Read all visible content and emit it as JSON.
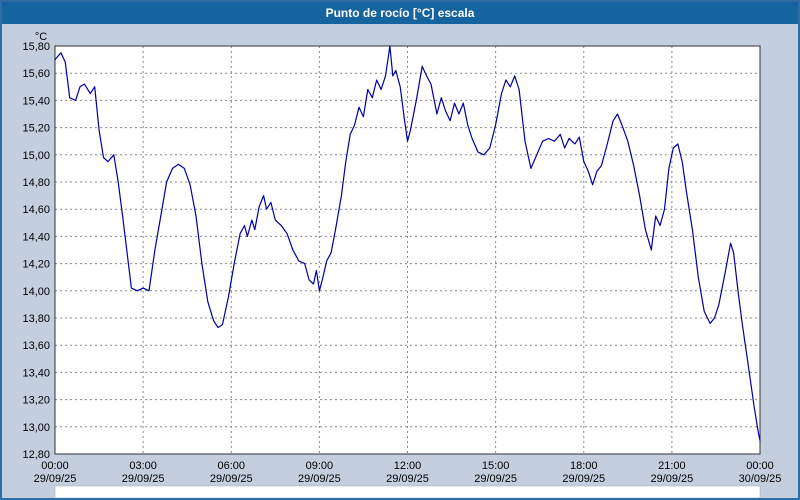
{
  "window": {
    "title": "Punto de rocío [°C] escala"
  },
  "colors": {
    "frame_border": "#2e6da4",
    "title_bar_bg": "#15639f",
    "title_text": "#ffffff",
    "panel_bg": "#c3cfdf",
    "plot_bg": "#ffffff",
    "grid": "#888888",
    "plot_border": "#333333",
    "line": "#0000a0",
    "tick_text": "#000000"
  },
  "chart_data": {
    "type": "line",
    "title": "Punto de rocío [°C] escala",
    "ylabel": "°C",
    "y_unit_label": "°C",
    "ylim": [
      12.8,
      15.8
    ],
    "y_tick_step": 0.2,
    "decimal_comma": true,
    "x_hours_range": [
      0,
      24
    ],
    "x_tick_step_hours": 3,
    "x_tick_times": [
      "00:00",
      "03:00",
      "06:00",
      "09:00",
      "12:00",
      "15:00",
      "18:00",
      "21:00",
      "00:00"
    ],
    "x_tick_dates": [
      "29/09/25",
      "29/09/25",
      "29/09/25",
      "29/09/25",
      "29/09/25",
      "29/09/25",
      "29/09/25",
      "29/09/25",
      "30/09/25"
    ],
    "grid": true,
    "legend_position": "none",
    "series": [
      {
        "name": "Punto de rocío",
        "points": [
          [
            0,
            15.7
          ],
          [
            0.2,
            15.75
          ],
          [
            0.35,
            15.68
          ],
          [
            0.5,
            15.42
          ],
          [
            0.7,
            15.4
          ],
          [
            0.85,
            15.5
          ],
          [
            1.0,
            15.52
          ],
          [
            1.2,
            15.45
          ],
          [
            1.35,
            15.5
          ],
          [
            1.5,
            15.18
          ],
          [
            1.65,
            14.98
          ],
          [
            1.8,
            14.95
          ],
          [
            2.0,
            15.0
          ],
          [
            2.15,
            14.8
          ],
          [
            2.3,
            14.55
          ],
          [
            2.5,
            14.2
          ],
          [
            2.6,
            14.02
          ],
          [
            2.8,
            14.0
          ],
          [
            3.0,
            14.02
          ],
          [
            3.2,
            14.0
          ],
          [
            3.4,
            14.3
          ],
          [
            3.6,
            14.55
          ],
          [
            3.8,
            14.8
          ],
          [
            4.0,
            14.9
          ],
          [
            4.2,
            14.93
          ],
          [
            4.4,
            14.9
          ],
          [
            4.6,
            14.78
          ],
          [
            4.8,
            14.55
          ],
          [
            5.0,
            14.2
          ],
          [
            5.2,
            13.92
          ],
          [
            5.4,
            13.78
          ],
          [
            5.55,
            13.73
          ],
          [
            5.7,
            13.75
          ],
          [
            5.9,
            13.95
          ],
          [
            6.1,
            14.2
          ],
          [
            6.3,
            14.42
          ],
          [
            6.45,
            14.48
          ],
          [
            6.55,
            14.4
          ],
          [
            6.7,
            14.52
          ],
          [
            6.8,
            14.45
          ],
          [
            6.95,
            14.62
          ],
          [
            7.1,
            14.7
          ],
          [
            7.2,
            14.6
          ],
          [
            7.35,
            14.65
          ],
          [
            7.5,
            14.52
          ],
          [
            7.7,
            14.48
          ],
          [
            7.9,
            14.42
          ],
          [
            8.1,
            14.3
          ],
          [
            8.3,
            14.22
          ],
          [
            8.5,
            14.2
          ],
          [
            8.65,
            14.08
          ],
          [
            8.8,
            14.05
          ],
          [
            8.9,
            14.15
          ],
          [
            9.0,
            14.0
          ],
          [
            9.1,
            14.08
          ],
          [
            9.25,
            14.22
          ],
          [
            9.4,
            14.28
          ],
          [
            9.55,
            14.45
          ],
          [
            9.75,
            14.7
          ],
          [
            9.9,
            14.95
          ],
          [
            10.05,
            15.15
          ],
          [
            10.2,
            15.22
          ],
          [
            10.35,
            15.35
          ],
          [
            10.5,
            15.28
          ],
          [
            10.65,
            15.48
          ],
          [
            10.8,
            15.42
          ],
          [
            10.95,
            15.55
          ],
          [
            11.1,
            15.48
          ],
          [
            11.25,
            15.58
          ],
          [
            11.4,
            15.8
          ],
          [
            11.5,
            15.58
          ],
          [
            11.6,
            15.62
          ],
          [
            11.75,
            15.5
          ],
          [
            11.9,
            15.25
          ],
          [
            12.0,
            15.1
          ],
          [
            12.1,
            15.18
          ],
          [
            12.3,
            15.4
          ],
          [
            12.5,
            15.65
          ],
          [
            12.65,
            15.58
          ],
          [
            12.8,
            15.52
          ],
          [
            13.0,
            15.3
          ],
          [
            13.15,
            15.42
          ],
          [
            13.3,
            15.32
          ],
          [
            13.45,
            15.25
          ],
          [
            13.6,
            15.38
          ],
          [
            13.75,
            15.3
          ],
          [
            13.9,
            15.38
          ],
          [
            14.05,
            15.22
          ],
          [
            14.2,
            15.12
          ],
          [
            14.4,
            15.02
          ],
          [
            14.6,
            15.0
          ],
          [
            14.8,
            15.05
          ],
          [
            15.0,
            15.22
          ],
          [
            15.2,
            15.45
          ],
          [
            15.35,
            15.55
          ],
          [
            15.5,
            15.5
          ],
          [
            15.65,
            15.58
          ],
          [
            15.8,
            15.48
          ],
          [
            16.0,
            15.1
          ],
          [
            16.2,
            14.9
          ],
          [
            16.4,
            15.0
          ],
          [
            16.6,
            15.1
          ],
          [
            16.8,
            15.12
          ],
          [
            17.0,
            15.1
          ],
          [
            17.2,
            15.15
          ],
          [
            17.35,
            15.05
          ],
          [
            17.5,
            15.12
          ],
          [
            17.7,
            15.08
          ],
          [
            17.85,
            15.13
          ],
          [
            18.0,
            14.95
          ],
          [
            18.15,
            14.88
          ],
          [
            18.3,
            14.78
          ],
          [
            18.45,
            14.88
          ],
          [
            18.6,
            14.92
          ],
          [
            18.8,
            15.08
          ],
          [
            19.0,
            15.25
          ],
          [
            19.15,
            15.3
          ],
          [
            19.3,
            15.22
          ],
          [
            19.5,
            15.1
          ],
          [
            19.7,
            14.92
          ],
          [
            19.9,
            14.7
          ],
          [
            20.1,
            14.45
          ],
          [
            20.3,
            14.3
          ],
          [
            20.45,
            14.55
          ],
          [
            20.6,
            14.48
          ],
          [
            20.75,
            14.6
          ],
          [
            20.9,
            14.9
          ],
          [
            21.05,
            15.05
          ],
          [
            21.2,
            15.08
          ],
          [
            21.35,
            14.95
          ],
          [
            21.5,
            14.72
          ],
          [
            21.7,
            14.45
          ],
          [
            21.9,
            14.1
          ],
          [
            22.1,
            13.85
          ],
          [
            22.3,
            13.76
          ],
          [
            22.45,
            13.8
          ],
          [
            22.6,
            13.9
          ],
          [
            22.8,
            14.12
          ],
          [
            23.0,
            14.35
          ],
          [
            23.1,
            14.28
          ],
          [
            23.25,
            14.0
          ],
          [
            23.4,
            13.75
          ],
          [
            23.6,
            13.45
          ],
          [
            23.8,
            13.15
          ],
          [
            23.95,
            12.95
          ],
          [
            24.0,
            12.9
          ]
        ]
      }
    ]
  }
}
